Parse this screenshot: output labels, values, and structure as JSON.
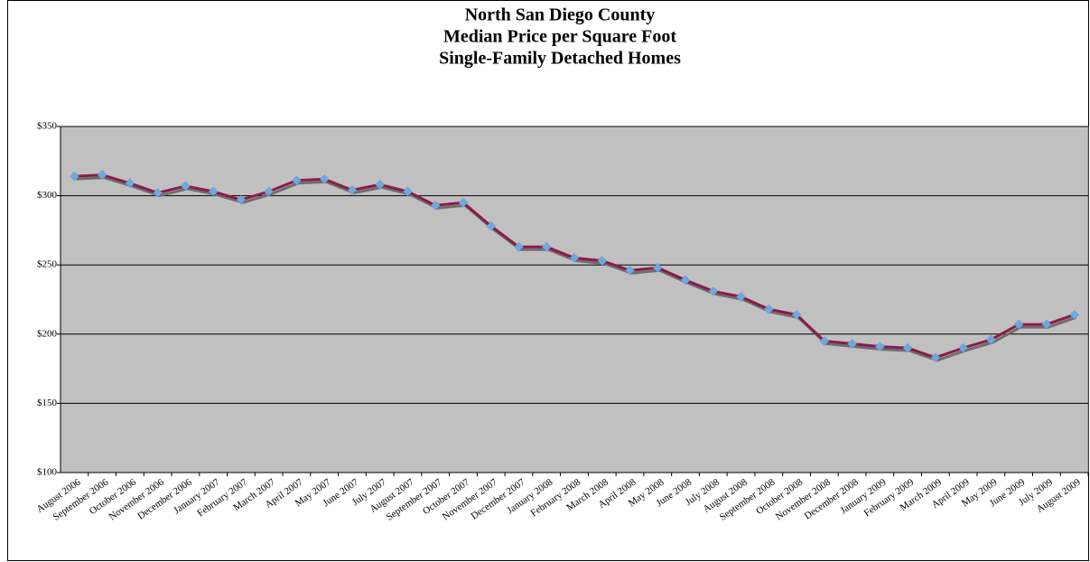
{
  "chart_data": {
    "type": "line",
    "title": [
      "North San Diego County",
      "Median Price per Square Foot",
      "Single-Family Detached Homes"
    ],
    "categories": [
      "August 2006",
      "September 2006",
      "October 2006",
      "November 2006",
      "December 2006",
      "January 2007",
      "February 2007",
      "March 2007",
      "April 2007",
      "May 2007",
      "June 2007",
      "July 2007",
      "August 2007",
      "September 2007",
      "October 2007",
      "November 2007",
      "December 2007",
      "January 2008",
      "February 2008",
      "March 2008",
      "April 2008",
      "May 2008",
      "June 2008",
      "July 2008",
      "August 2008",
      "September 2008",
      "October 2008",
      "November 2008",
      "December 2008",
      "January 2009",
      "February 2009",
      "March 2009",
      "April 2009",
      "May 2009",
      "June 2009",
      "July 2009",
      "August 2009"
    ],
    "series": [
      {
        "name": "Median Price per Square Foot",
        "color": "#8b1a4a",
        "marker_color": "#6fa8e0",
        "values": [
          314,
          315,
          309,
          302,
          307,
          303,
          297,
          303,
          311,
          312,
          304,
          308,
          303,
          293,
          295,
          278,
          263,
          263,
          255,
          253,
          246,
          248,
          239,
          231,
          227,
          218,
          214,
          195,
          193,
          191,
          190,
          183,
          190,
          196,
          207,
          207,
          214
        ]
      }
    ],
    "ylim": [
      100,
      350
    ],
    "yticks": [
      {
        "value": 100,
        "label": "$100"
      },
      {
        "value": 150,
        "label": "$150"
      },
      {
        "value": 200,
        "label": "$200"
      },
      {
        "value": 250,
        "label": "$250"
      },
      {
        "value": 300,
        "label": "$300"
      },
      {
        "value": 350,
        "label": "$350"
      }
    ],
    "grid": true
  }
}
